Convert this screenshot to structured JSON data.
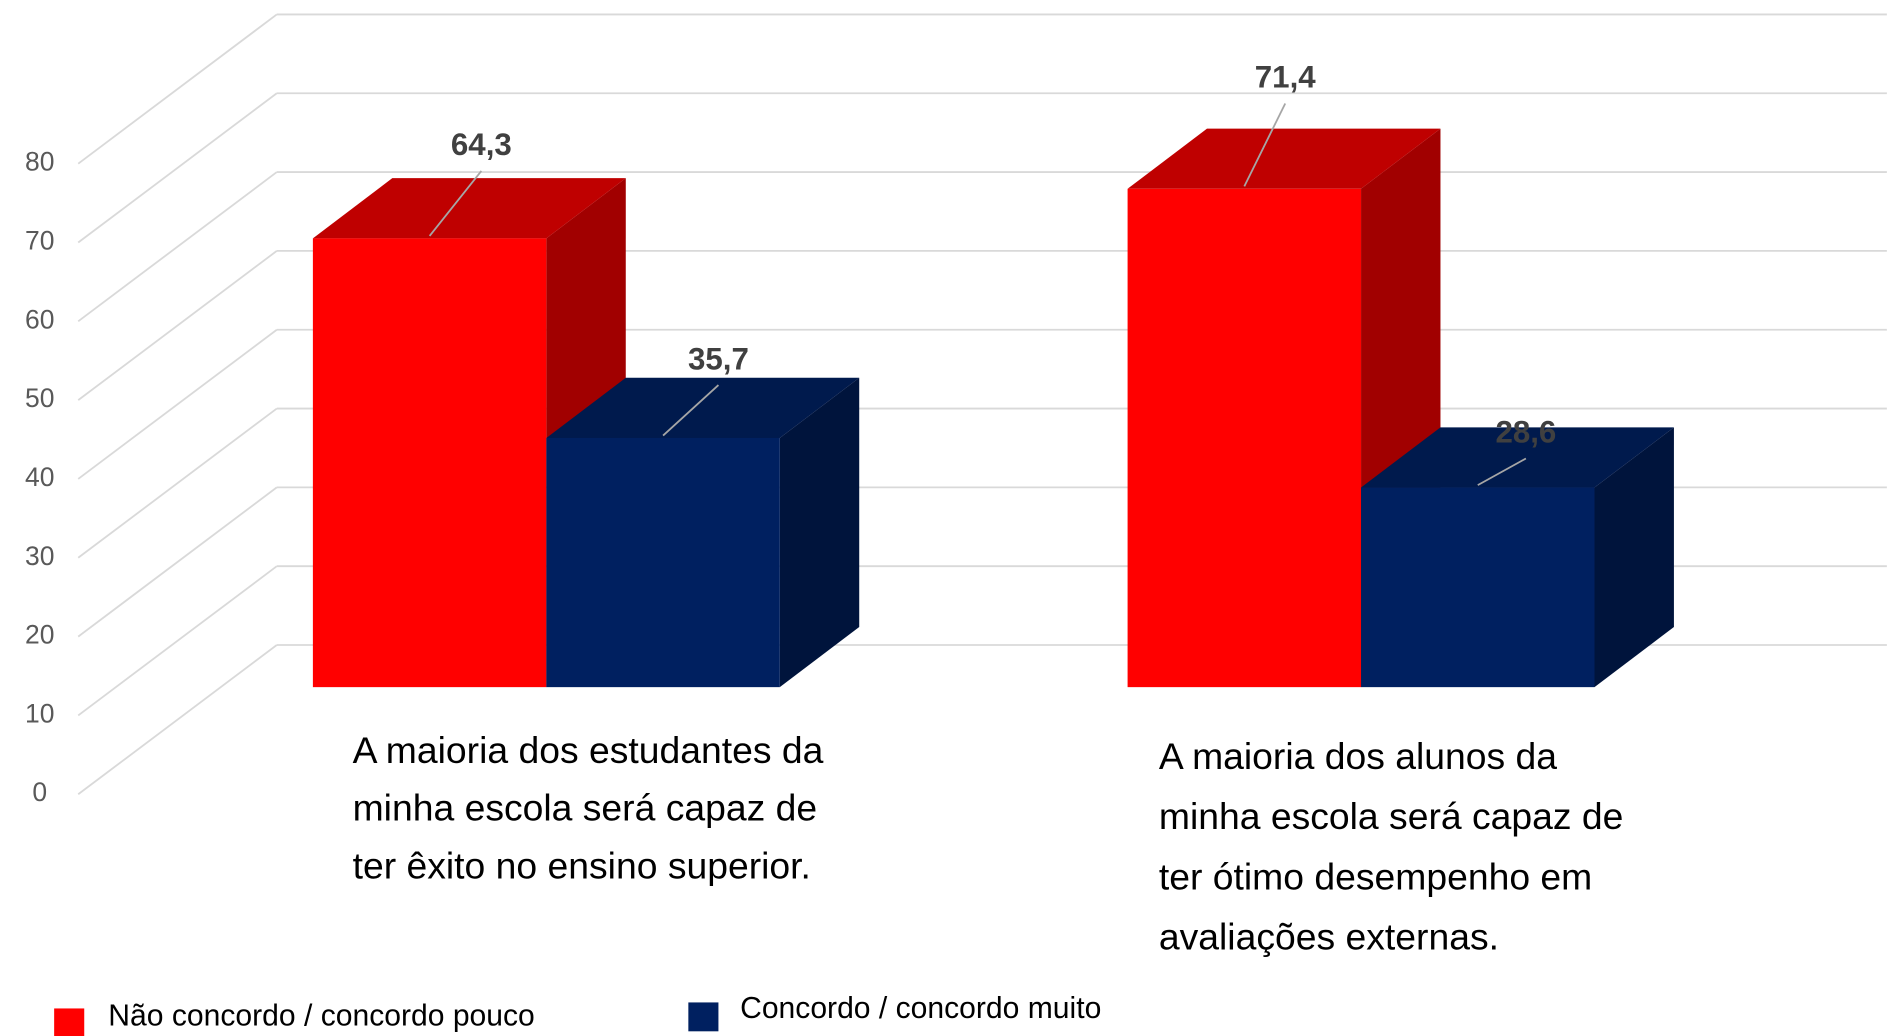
{
  "chart_data": {
    "type": "bar3d",
    "categories": [
      "A maioria dos estudantes da minha escola será capaz de ter êxito no ensino superior.",
      "A maioria dos alunos da minha escola será capaz de ter ótimo desempenho em avaliações externas."
    ],
    "series": [
      {
        "name": "Não concordo / concordo pouco",
        "color": "#ff0000",
        "values": [
          64.3,
          71.4
        ],
        "value_labels": [
          "64,3",
          "71,4"
        ]
      },
      {
        "name": "Concordo / concordo muito",
        "color": "#002060",
        "values": [
          35.7,
          28.6
        ],
        "value_labels": [
          "35,7",
          "28,6"
        ]
      }
    ],
    "ylim": [
      0,
      80
    ],
    "yticks": [
      0,
      10,
      20,
      30,
      40,
      50,
      60,
      70,
      80
    ],
    "grid": true,
    "legend": "bottom"
  }
}
